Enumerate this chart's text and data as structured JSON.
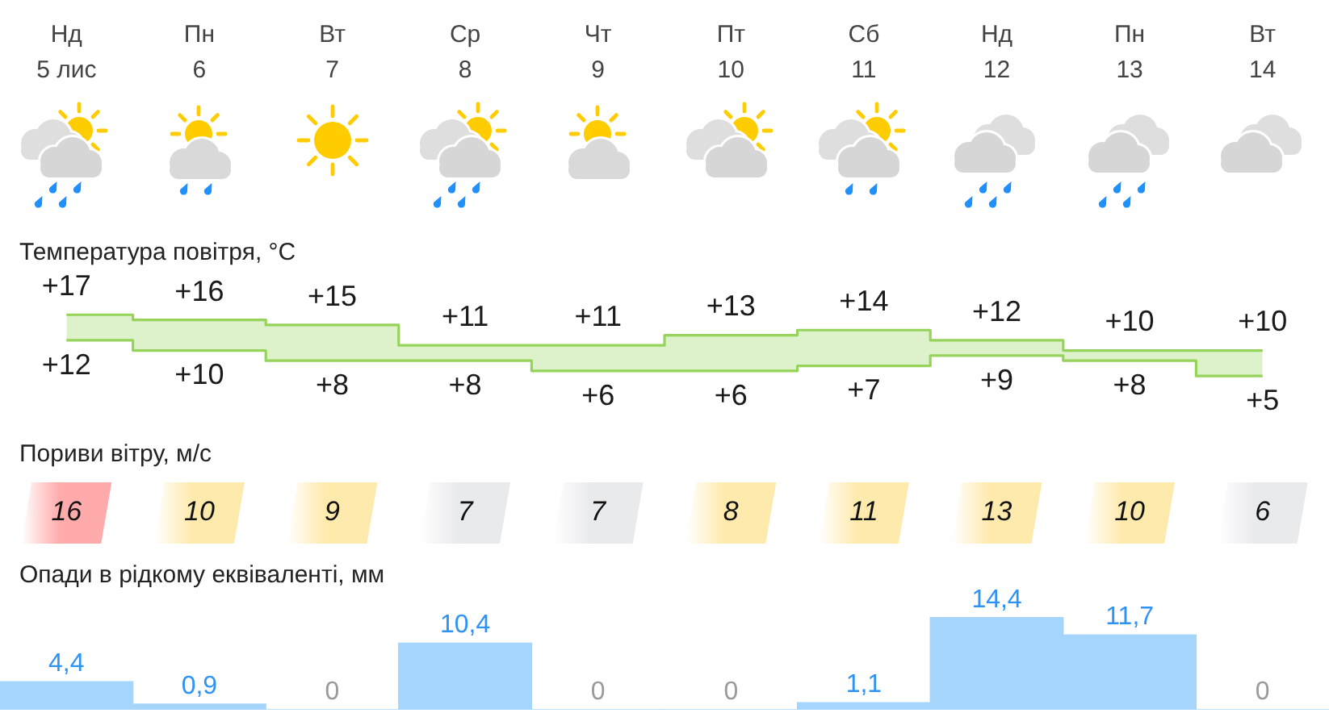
{
  "chart_data": [
    {
      "type": "step",
      "title": "Температура повітря, °C",
      "categories": [
        "Нд 5 лис",
        "Пн 6",
        "Вт 7",
        "Ср 8",
        "Чт 9",
        "Пт 10",
        "Сб 11",
        "Нд 12",
        "Пн 13",
        "Вт 14"
      ],
      "series": [
        {
          "color": "#95d35a",
          "values": [
            17,
            16,
            15,
            11,
            11,
            13,
            14,
            12,
            10,
            10
          ],
          "value_labels": [
            "+17",
            "+16",
            "+15",
            "+11",
            "+11",
            "+13",
            "+14",
            "+12",
            "+10",
            "+10"
          ]
        },
        {
          "color": "#95d35a",
          "values": [
            12,
            10,
            8,
            8,
            6,
            6,
            7,
            9,
            8,
            5
          ],
          "value_labels": [
            "+12",
            "+10",
            "+8",
            "+8",
            "+6",
            "+6",
            "+7",
            "+9",
            "+8",
            "+5"
          ]
        }
      ],
      "tick_labels": "x"
    },
    {
      "type": "other",
      "title": "Пориви вітру, м/с",
      "categories": [
        null,
        null,
        null,
        null,
        null,
        null,
        null,
        null,
        null,
        null
      ],
      "values": [
        16,
        10,
        9,
        7,
        7,
        8,
        11,
        13,
        10,
        6
      ],
      "colors": [
        "#ffabab",
        "#ffeaad",
        "#ffeaad",
        "#e9eaec",
        "#e9eaec",
        "#ffeaad",
        "#ffeaad",
        "#ffeaad",
        "#ffeaad",
        "#e9eaec"
      ],
      "data_labels": true
    },
    {
      "type": "bar",
      "title": "Опади в рідкому еквіваленті, мм",
      "categories": [
        null,
        null,
        null,
        null,
        null,
        null,
        null,
        null,
        null,
        null
      ],
      "values": [
        4.4,
        0.9,
        0,
        10.4,
        0,
        0,
        1.1,
        14.4,
        11.7,
        0
      ],
      "color": "#a5d5fb",
      "value_labels": [
        "4,4",
        "0,9",
        "0",
        "10,4",
        "0",
        "0",
        "1,1",
        "14,4",
        "11,7",
        "0"
      ],
      "tick_labels": false
    }
  ]
}
